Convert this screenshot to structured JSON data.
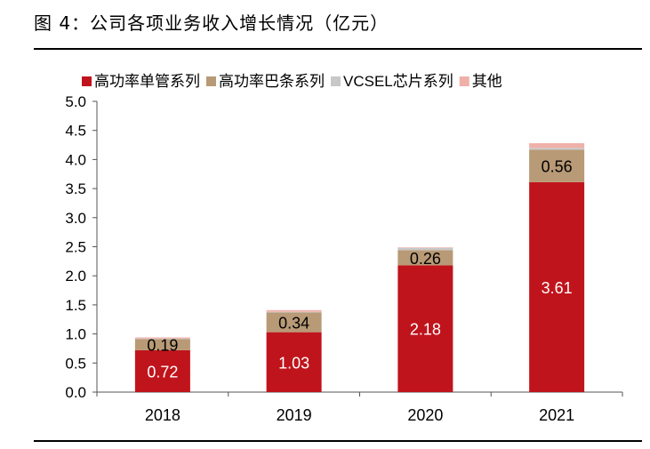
{
  "figure": {
    "title": "图 4：公司各项业务收入增长情况（亿元）"
  },
  "chart_data": {
    "type": "bar",
    "stacked": true,
    "categories": [
      "2018",
      "2019",
      "2020",
      "2021"
    ],
    "series": [
      {
        "name": "高功率单管系列",
        "color": "#c0141c",
        "values": [
          0.72,
          1.03,
          2.18,
          3.61
        ],
        "show_labels": true
      },
      {
        "name": "高功率巴条系列",
        "color": "#b89a76",
        "values": [
          0.19,
          0.34,
          0.26,
          0.56
        ],
        "show_labels": true
      },
      {
        "name": "VCSEL芯片系列",
        "color": "#c8c8c8",
        "values": [
          0.01,
          0.01,
          0.04,
          0.03
        ],
        "show_labels": false
      },
      {
        "name": "其他",
        "color": "#efb0a8",
        "values": [
          0.02,
          0.03,
          0.01,
          0.08
        ],
        "show_labels": false
      }
    ],
    "ylim": [
      0,
      5.0
    ],
    "yticks": [
      "0.0",
      "0.5",
      "1.0",
      "1.5",
      "2.0",
      "2.5",
      "3.0",
      "3.5",
      "4.0",
      "4.5",
      "5.0"
    ],
    "grid": false,
    "legend": "top"
  }
}
